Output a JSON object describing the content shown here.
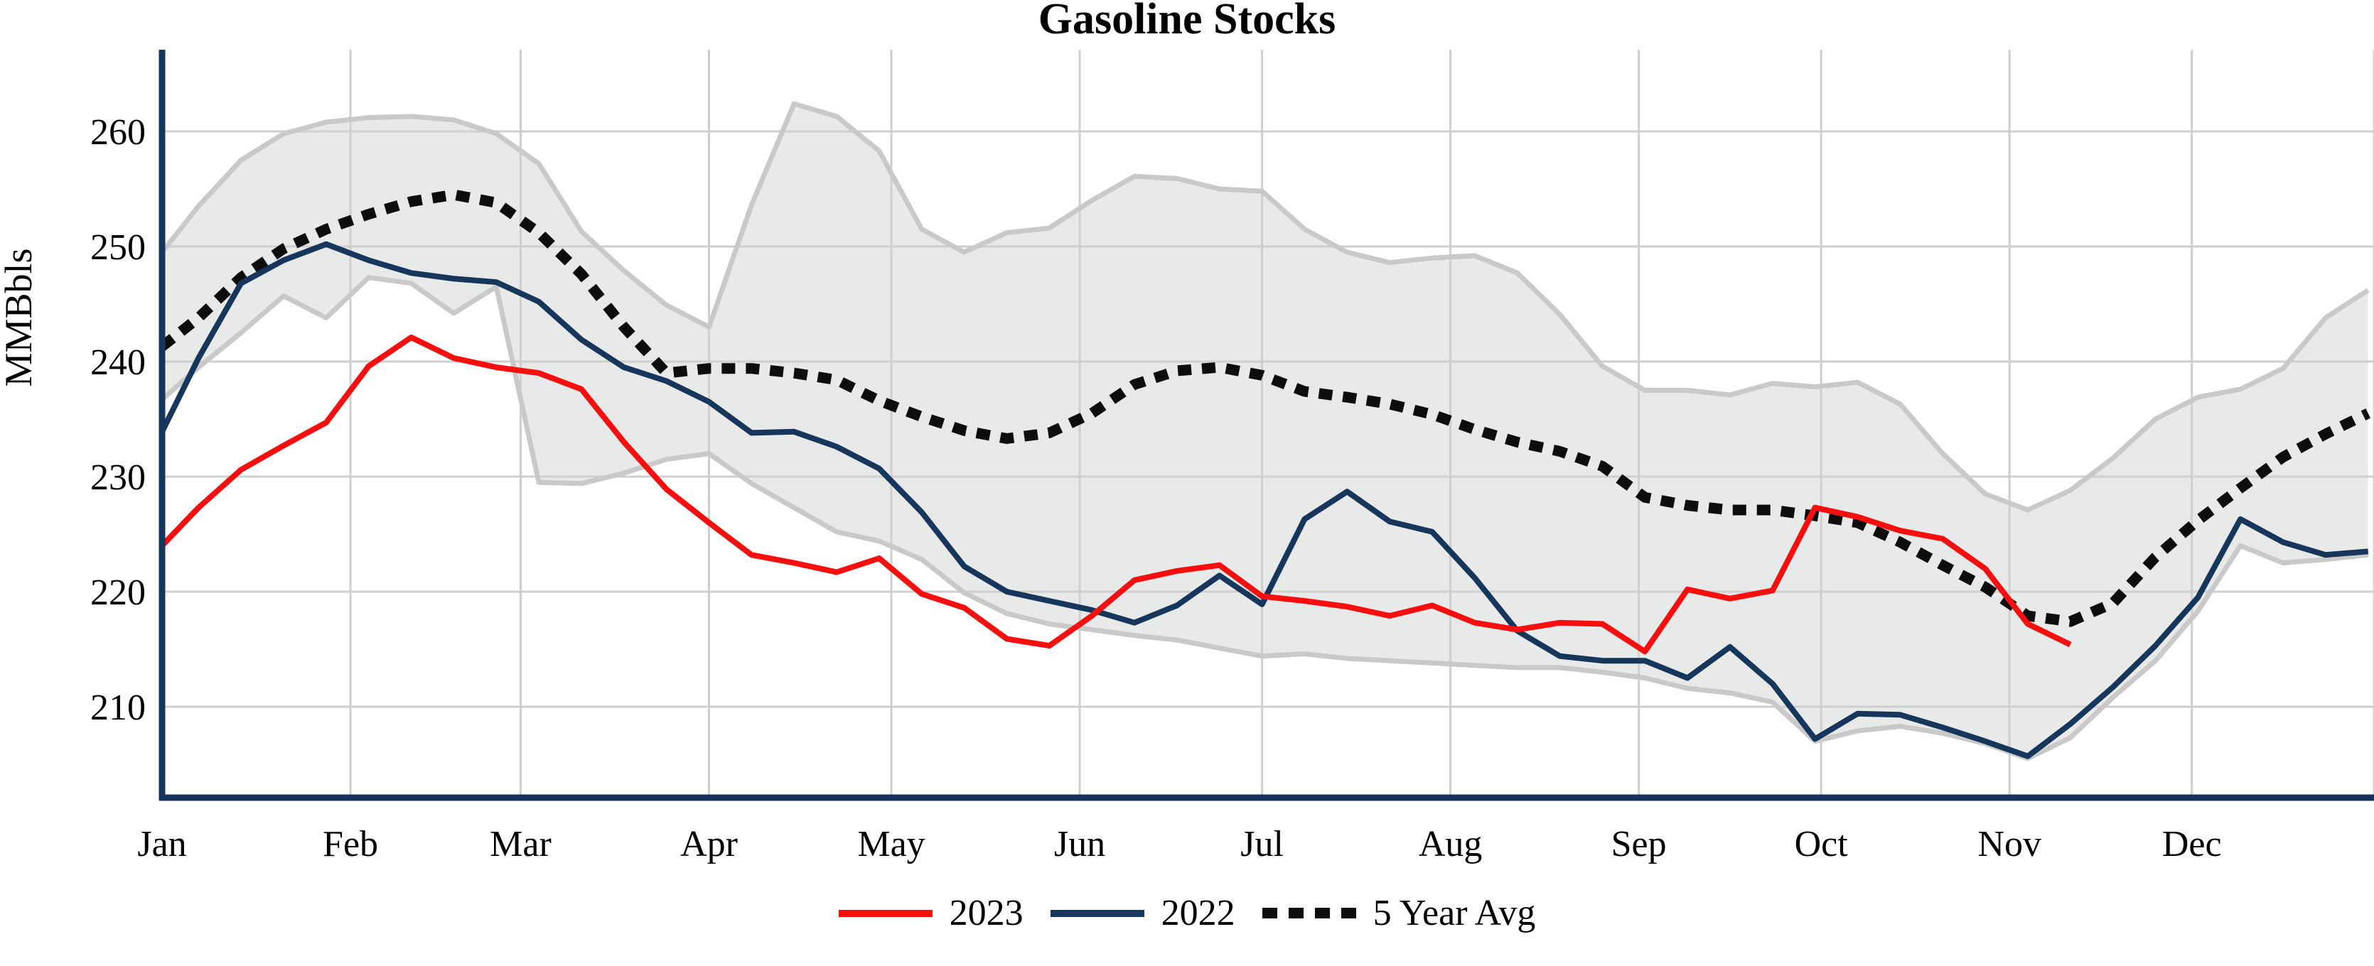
{
  "title": "Gasoline Stocks",
  "y_axis_label": "MMBbls",
  "legend": {
    "items": [
      {
        "label": "2023",
        "color": "#f50f0f",
        "style": "solid"
      },
      {
        "label": "2022",
        "color": "#17365c",
        "style": "solid"
      },
      {
        "label": "5 Year Avg",
        "color": "#0d0d0d",
        "style": "dotted"
      }
    ]
  },
  "colors": {
    "series_2023": "#f50f0f",
    "series_2022": "#17365c",
    "series_5yr_avg": "#0d0d0d",
    "band_fill": "#e8e9e9",
    "band_edge": "#c9c9c9",
    "gridline": "#cfcfcf",
    "axis_spine": "#17365c",
    "text": "#000000"
  },
  "chart_data": {
    "type": "line",
    "title": "Gasoline Stocks",
    "xlabel": "",
    "ylabel": "MMBbls",
    "grid": true,
    "legend_position": "bottom-center",
    "ylim": [
      202,
      267
    ],
    "xlim_days": [
      0,
      365
    ],
    "yticks": [
      210,
      220,
      230,
      240,
      250,
      260
    ],
    "month_labels": [
      "Jan",
      "Feb",
      "Mar",
      "Apr",
      "May",
      "Jun",
      "Jul",
      "Aug",
      "Sep",
      "Oct",
      "Nov",
      "Dec"
    ],
    "month_start_days": [
      0,
      31,
      59,
      90,
      120,
      151,
      181,
      212,
      243,
      273,
      304,
      334
    ],
    "vertical_grid_days": [
      31,
      59,
      90,
      120,
      151,
      181,
      212,
      243,
      273,
      304,
      334,
      364
    ],
    "x_unit": "day of year (weekly data)",
    "week_days": [
      0,
      6,
      13,
      20,
      27,
      34,
      41,
      48,
      55,
      62,
      69,
      76,
      83,
      90,
      97,
      104,
      111,
      118,
      125,
      132,
      139,
      146,
      153,
      160,
      167,
      174,
      181,
      188,
      195,
      202,
      209,
      216,
      223,
      230,
      237,
      244,
      251,
      258,
      265,
      272,
      279,
      286,
      293,
      300,
      307,
      314,
      321,
      328,
      335,
      342,
      349,
      356,
      363
    ],
    "series": [
      {
        "name": "2023",
        "color": "#f50f0f",
        "style": "solid",
        "line_width": 8,
        "values": [
          224.0,
          227.3,
          230.6,
          232.7,
          234.7,
          239.6,
          242.1,
          240.3,
          239.5,
          239.0,
          237.6,
          233.0,
          228.9,
          226.0,
          223.2,
          222.5,
          221.7,
          222.9,
          219.8,
          218.6,
          215.9,
          215.3,
          217.9,
          221.0,
          221.8,
          222.3,
          219.6,
          219.2,
          218.7,
          217.9,
          218.8,
          217.3,
          216.7,
          217.3,
          217.2,
          214.8,
          220.2,
          219.4,
          220.1,
          227.3,
          226.5,
          225.3,
          224.6,
          222.0,
          217.2,
          215.4
        ]
      },
      {
        "name": "2022",
        "color": "#17365c",
        "style": "solid",
        "line_width": 8,
        "values": [
          233.9,
          240.3,
          246.8,
          248.8,
          250.2,
          248.8,
          247.7,
          247.2,
          246.9,
          245.2,
          241.9,
          239.5,
          238.3,
          236.5,
          233.8,
          233.9,
          232.6,
          230.7,
          226.9,
          222.2,
          220.0,
          219.2,
          218.4,
          217.3,
          218.8,
          221.4,
          218.9,
          226.3,
          228.7,
          226.1,
          225.2,
          221.2,
          216.6,
          214.4,
          214.0,
          214.0,
          212.5,
          215.2,
          212.0,
          207.2,
          209.4,
          209.3,
          208.2,
          207.0,
          205.7,
          208.5,
          211.7,
          215.3,
          219.5,
          226.3,
          224.3,
          223.2,
          223.5
        ]
      },
      {
        "name": "5 Year Avg",
        "color": "#0d0d0d",
        "style": "dotted",
        "line_width": 15,
        "dash": [
          19,
          15
        ],
        "values": [
          241.3,
          243.8,
          247.3,
          249.8,
          251.5,
          252.8,
          253.9,
          254.5,
          253.8,
          251.2,
          247.6,
          243.0,
          239.0,
          239.4,
          239.4,
          239.0,
          238.4,
          236.6,
          235.2,
          234.0,
          233.3,
          233.8,
          235.5,
          238.0,
          239.2,
          239.5,
          238.8,
          237.4,
          236.9,
          236.3,
          235.4,
          234.1,
          233.0,
          232.2,
          230.9,
          228.2,
          227.5,
          227.1,
          227.1,
          226.6,
          226.0,
          224.3,
          222.3,
          220.4,
          217.9,
          217.4,
          219.0,
          223.0,
          226.2,
          229.0,
          231.7,
          233.7,
          235.5
        ]
      }
    ],
    "band": {
      "name": "5 Year Range",
      "fill": "#e8e9e9",
      "edge_color": "#c9c9c9",
      "edge_width": 7,
      "upper": [
        249.5,
        253.5,
        257.5,
        259.8,
        260.8,
        261.2,
        261.3,
        261.0,
        259.8,
        257.2,
        251.3,
        247.9,
        244.9,
        243.0,
        253.6,
        262.4,
        261.3,
        258.3,
        251.5,
        249.5,
        251.2,
        251.6,
        254.0,
        256.1,
        255.9,
        255.0,
        254.8,
        251.5,
        249.5,
        248.6,
        249.0,
        249.2,
        247.7,
        244.1,
        239.6,
        237.5,
        237.5,
        237.1,
        238.1,
        237.8,
        238.2,
        236.3,
        232.0,
        228.5,
        227.1,
        228.8,
        231.6,
        235.0,
        236.9,
        237.6,
        239.4,
        243.8,
        246.2
      ],
      "lower": [
        236.7,
        239.5,
        242.5,
        245.7,
        243.8,
        247.3,
        246.8,
        244.2,
        246.5,
        229.5,
        229.4,
        230.3,
        231.5,
        232.0,
        229.4,
        227.3,
        225.2,
        224.4,
        222.8,
        219.9,
        218.1,
        217.2,
        216.7,
        216.2,
        215.8,
        215.1,
        214.4,
        214.6,
        214.2,
        214.0,
        213.8,
        213.6,
        213.4,
        213.4,
        213.0,
        212.5,
        211.6,
        211.2,
        210.4,
        207.0,
        207.9,
        208.3,
        207.7,
        206.8,
        205.5,
        207.3,
        210.8,
        214.0,
        218.3,
        224.0,
        222.5,
        222.8,
        223.2
      ]
    }
  }
}
